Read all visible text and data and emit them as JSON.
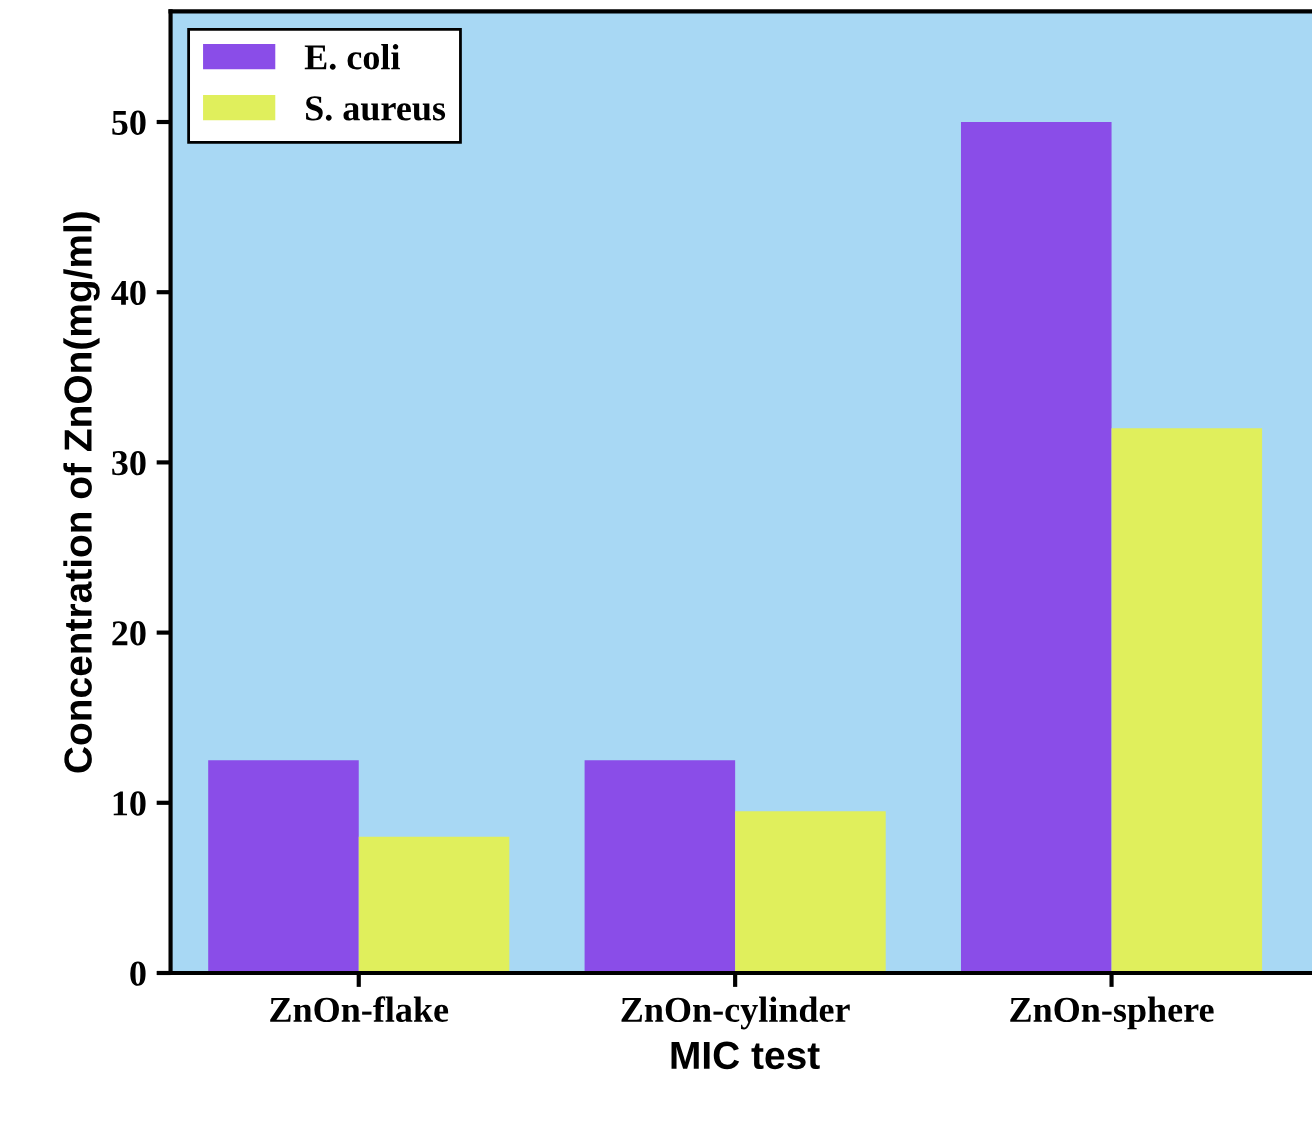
{
  "chart_data": {
    "type": "bar",
    "xlabel": "MIC test",
    "ylabel": "Concentration of ZnOn(mg/ml)",
    "categories": [
      "ZnOn-flake",
      "ZnOn-cylinder",
      "ZnOn-sphere"
    ],
    "series": [
      {
        "name": "E. coli",
        "color": "#8a4de8",
        "values": [
          12.5,
          12.5,
          50
        ]
      },
      {
        "name": "S. aureus",
        "color": "#e0ef5c",
        "values": [
          8,
          9.5,
          32
        ]
      }
    ],
    "ylim": [
      0,
      56.5
    ],
    "yticks": [
      0,
      10,
      20,
      30,
      40,
      50
    ],
    "grid": false,
    "legend": "top left"
  }
}
